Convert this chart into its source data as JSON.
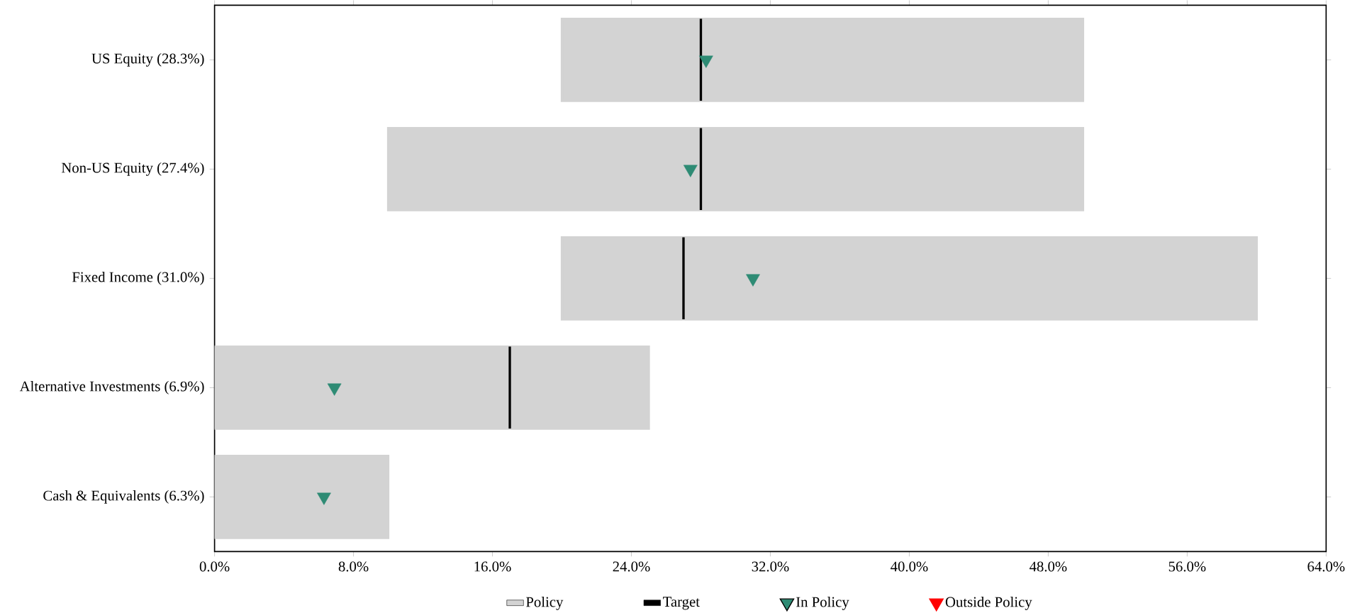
{
  "chart_data": {
    "type": "bar",
    "orientation": "horizontal",
    "categories": [
      "US Equity (28.3%)",
      "Non-US Equity (27.4%)",
      "Fixed Income (31.0%)",
      "Alternative Investments (6.9%)",
      "Cash & Equivalents (6.3%)"
    ],
    "xlim": [
      0,
      64
    ],
    "xticks": [
      {
        "value": 0,
        "label": "0.0%"
      },
      {
        "value": 8,
        "label": "8.0%"
      },
      {
        "value": 16,
        "label": "16.0%"
      },
      {
        "value": 24,
        "label": "24.0%"
      },
      {
        "value": 32,
        "label": "32.0%"
      },
      {
        "value": 40,
        "label": "40.0%"
      },
      {
        "value": 48,
        "label": "48.0%"
      },
      {
        "value": 56,
        "label": "56.0%"
      },
      {
        "value": 64,
        "label": "64.0%"
      }
    ],
    "legend": "bottom",
    "grid": false,
    "series": [
      {
        "name": "Policy",
        "color": "#d3d3d3",
        "base": [
          20,
          10,
          20,
          0,
          0
        ],
        "values": [
          30,
          40,
          40,
          25,
          10
        ]
      },
      {
        "name": "Target",
        "color": "#000000",
        "base": [
          28,
          28,
          27,
          17,
          null
        ],
        "values": [
          0,
          0,
          0,
          0,
          null
        ]
      },
      {
        "name": "In Policy",
        "type": "scatter",
        "marker": "triangle",
        "color": "#2e8b74",
        "values": [
          28.3,
          27.4,
          31.0,
          6.9,
          6.3
        ]
      },
      {
        "name": "Outside Policy",
        "type": "scatter",
        "marker": "triangle",
        "color": "#ff0000",
        "values": [
          null,
          null,
          null,
          null,
          null
        ]
      }
    ]
  }
}
